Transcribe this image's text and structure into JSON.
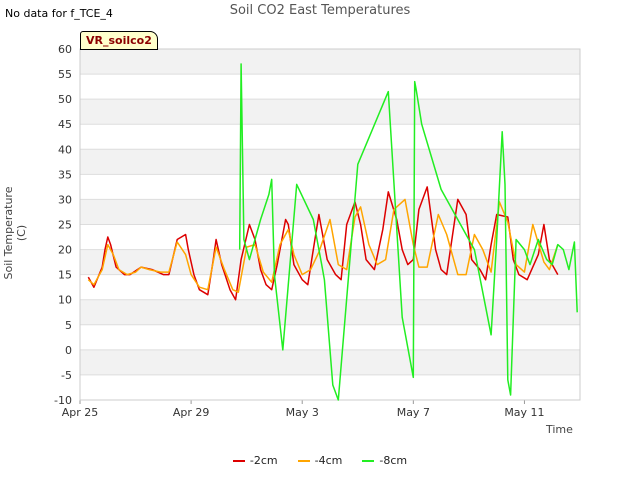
{
  "no_data_text": "No data for f_TCE_4",
  "site_badge": "VR_soilco2",
  "chart_data": {
    "type": "line",
    "title": "Soil CO2 East Temperatures",
    "xlabel": "Time",
    "ylabel": "Soil Temperature (C)",
    "ylim": [
      -10,
      60
    ],
    "yticks": [
      -10,
      -5,
      0,
      5,
      10,
      15,
      20,
      25,
      30,
      35,
      40,
      45,
      50,
      55,
      60
    ],
    "xlim": [
      0,
      18
    ],
    "x_units": "days since Apr 25",
    "xticks": [
      {
        "value": 0,
        "label": "Apr 25"
      },
      {
        "value": 4,
        "label": "Apr 29"
      },
      {
        "value": 8,
        "label": "May 3"
      },
      {
        "value": 12,
        "label": "May 7"
      },
      {
        "value": 16,
        "label": "May 11"
      }
    ],
    "grid": true,
    "legend_position": "bottom",
    "series": [
      {
        "name": "-2cm",
        "color": "#dd0000",
        "x": [
          0.3,
          0.5,
          0.8,
          0.9,
          1.0,
          1.1,
          1.3,
          1.6,
          1.8,
          2.2,
          2.6,
          3.0,
          3.2,
          3.5,
          3.8,
          3.9,
          4.1,
          4.3,
          4.6,
          4.8,
          4.9,
          5.1,
          5.4,
          5.6,
          5.8,
          6.1,
          6.3,
          6.5,
          6.7,
          6.9,
          7.1,
          7.4,
          7.5,
          7.7,
          8.0,
          8.2,
          8.4,
          8.6,
          8.9,
          9.2,
          9.4,
          9.6,
          9.9,
          10.1,
          10.3,
          10.6,
          10.9,
          11.1,
          11.4,
          11.6,
          11.8,
          12.0,
          12.2,
          12.5,
          12.8,
          13.0,
          13.2,
          13.6,
          13.9,
          14.1,
          14.4,
          14.6,
          14.8,
          15.0,
          15.4,
          15.6,
          15.8,
          16.1,
          16.5,
          16.7,
          16.9,
          17.2
        ],
        "y": [
          14.5,
          12.5,
          16.5,
          20,
          22.5,
          21,
          16.5,
          15,
          15,
          16.5,
          16,
          15,
          15,
          22,
          23,
          20,
          15,
          12,
          11,
          18,
          22,
          17,
          12,
          10,
          18,
          25,
          22,
          16,
          13,
          12,
          17,
          26,
          25,
          17,
          14,
          13,
          20,
          27,
          18,
          15,
          14,
          25,
          29.5,
          25,
          18,
          16,
          24,
          31.5,
          26,
          20,
          17,
          18,
          28,
          32.5,
          20,
          16,
          15,
          30,
          27,
          18,
          16,
          14,
          21,
          27,
          26.5,
          18,
          15,
          14,
          19,
          25,
          18,
          15
        ]
      },
      {
        "name": "-4cm",
        "color": "#ffa500",
        "x": [
          0.3,
          0.5,
          0.8,
          1.0,
          1.2,
          1.4,
          1.7,
          2.0,
          2.2,
          2.5,
          2.9,
          3.2,
          3.5,
          3.8,
          4.0,
          4.3,
          4.6,
          4.9,
          5.2,
          5.5,
          5.7,
          6.0,
          6.3,
          6.6,
          6.9,
          7.2,
          7.5,
          7.7,
          8.0,
          8.3,
          8.6,
          9.0,
          9.3,
          9.6,
          9.9,
          10.1,
          10.4,
          10.7,
          11.0,
          11.3,
          11.7,
          12.0,
          12.2,
          12.5,
          12.9,
          13.2,
          13.6,
          13.9,
          14.2,
          14.5,
          14.8,
          15.1,
          15.4,
          15.7,
          16.0,
          16.3,
          16.7,
          16.9,
          17.2
        ],
        "y": [
          14,
          13,
          16,
          21,
          19,
          16,
          15,
          15.5,
          16.5,
          16,
          15.5,
          15.5,
          21.5,
          19,
          15,
          12.5,
          12,
          20.5,
          16,
          12,
          11.5,
          20.5,
          21,
          15.5,
          13.5,
          21,
          24,
          19,
          15,
          16,
          19.5,
          26,
          17,
          16,
          26.5,
          28.5,
          21,
          17,
          18,
          28,
          30,
          21,
          16.5,
          16.5,
          27,
          23,
          15,
          15,
          23,
          20,
          15.5,
          29.5,
          25.5,
          17,
          15.5,
          25,
          17.5,
          16,
          21
        ]
      },
      {
        "name": "-8cm",
        "color": "#22ee22",
        "x": [
          5.75,
          5.8,
          5.9,
          6.1,
          6.3,
          6.5,
          6.8,
          6.9,
          7.0,
          7.3,
          7.8,
          8.4,
          8.6,
          8.7,
          8.8,
          9.1,
          9.3,
          10.0,
          11.1,
          11.6,
          12.0,
          12.05,
          12.1,
          12.3,
          13.0,
          14.2,
          14.8,
          15.0,
          15.2,
          15.3,
          15.4,
          15.5,
          15.7,
          16.0,
          16.2,
          16.5,
          16.8,
          17.0,
          17.2,
          17.4,
          17.6,
          17.8,
          17.9
        ],
        "y": [
          20,
          57,
          22,
          18,
          22,
          26,
          31,
          34,
          15,
          0,
          33,
          26,
          20,
          17,
          14,
          -7,
          -10,
          37,
          51.5,
          6.5,
          -5.5,
          53.5,
          52,
          45,
          32,
          20,
          3,
          22,
          43.5,
          33,
          -6,
          -9,
          22,
          20,
          17,
          22,
          18,
          17,
          21,
          20,
          16,
          21.5,
          7.5
        ]
      }
    ]
  }
}
